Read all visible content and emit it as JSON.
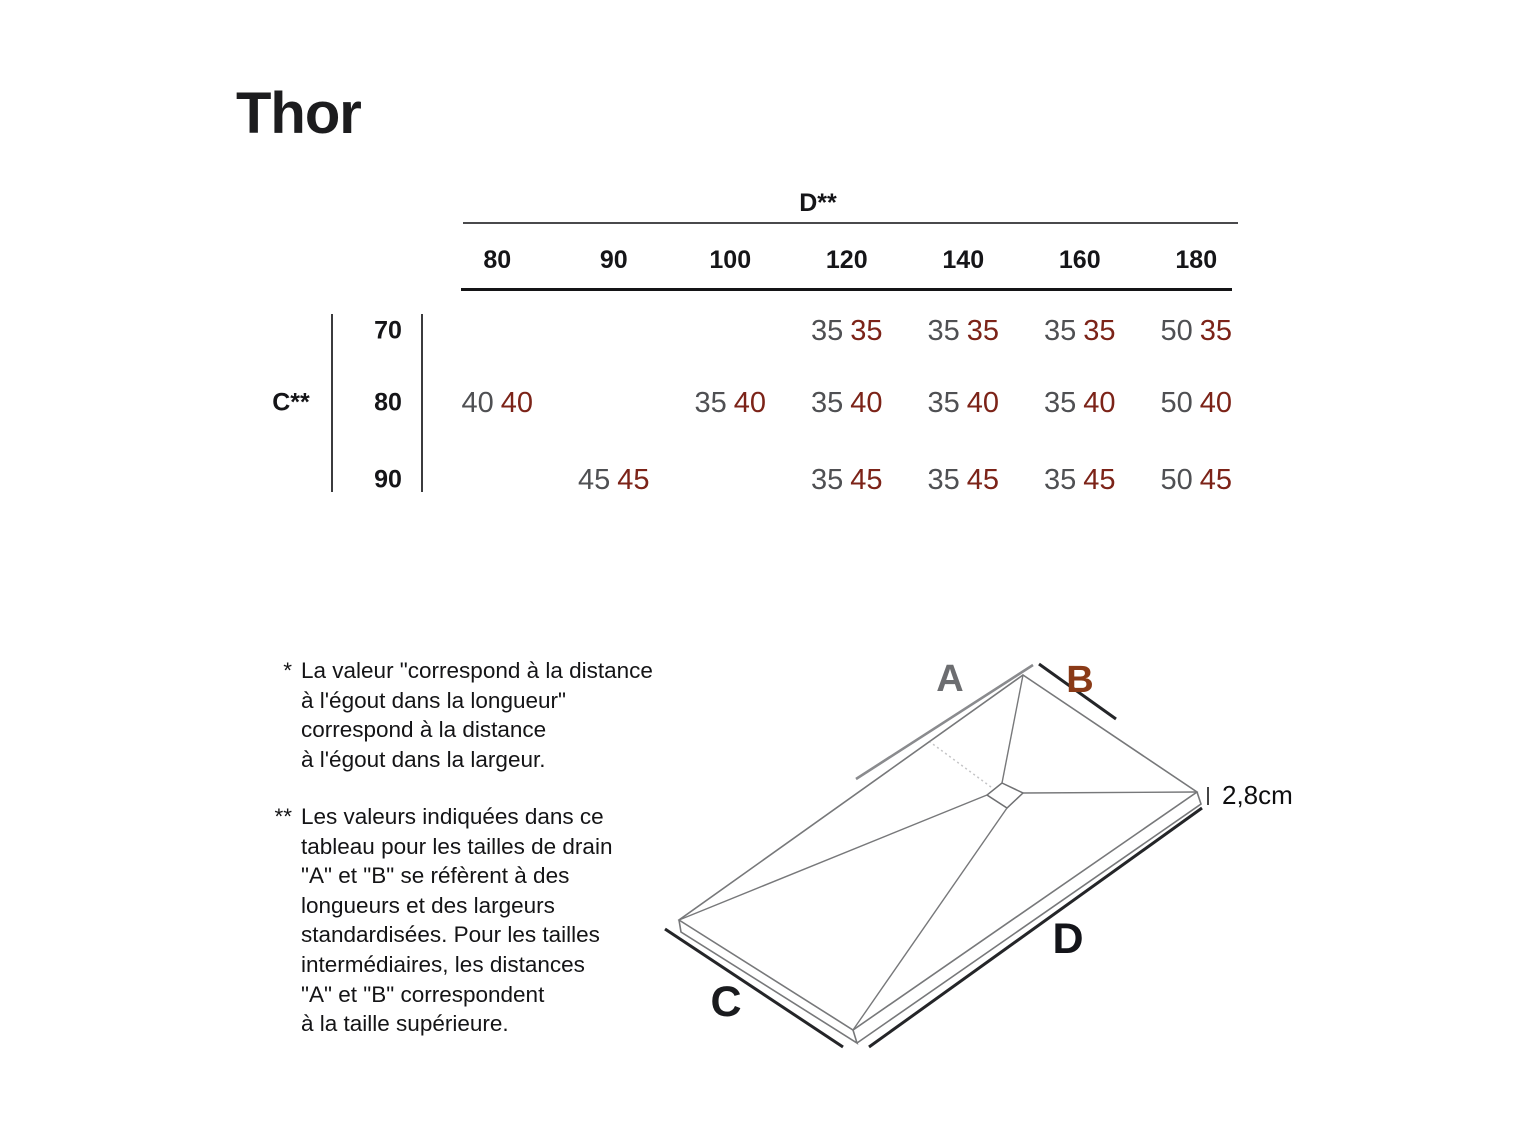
{
  "title": "Thor",
  "table": {
    "col_group_label": "D**",
    "row_group_label": "C**",
    "columns": [
      "80",
      "90",
      "100",
      "120",
      "140",
      "160",
      "180"
    ],
    "rows": [
      {
        "label": "70",
        "cells": [
          null,
          null,
          null,
          [
            "35",
            "35"
          ],
          [
            "35",
            "35"
          ],
          [
            "35",
            "35"
          ],
          [
            "50",
            "35"
          ]
        ]
      },
      {
        "label": "80",
        "cells": [
          [
            "40",
            "40"
          ],
          null,
          [
            "35",
            "40"
          ],
          [
            "35",
            "40"
          ],
          [
            "35",
            "40"
          ],
          [
            "35",
            "40"
          ],
          [
            "50",
            "40"
          ]
        ]
      },
      {
        "label": "90",
        "cells": [
          null,
          [
            "45",
            "45"
          ],
          null,
          [
            "35",
            "45"
          ],
          [
            "35",
            "45"
          ],
          [
            "35",
            "45"
          ],
          [
            "50",
            "45"
          ]
        ]
      }
    ]
  },
  "footnotes": [
    {
      "marker": "*",
      "lines": [
        "La valeur \"correspond à la distance",
        "à l'égout dans la longueur\"",
        "correspond à la distance",
        "à l'égout dans la largeur."
      ]
    },
    {
      "marker": "**",
      "lines": [
        "Les valeurs indiquées dans ce",
        "tableau pour les tailles de drain",
        "\"A\" et \"B\" se réfèrent à des",
        "longueurs et des largeurs",
        "standardisées. Pour les tailles",
        "intermédiaires, les distances",
        "\"A\" et \"B\" correspondent",
        "à la taille supérieure."
      ]
    }
  ],
  "diagram": {
    "label_a": "A",
    "label_b": "B",
    "label_c": "C",
    "label_d": "D",
    "thickness": "2,8cm"
  },
  "colors": {
    "value_gray": "#4f5053",
    "value_red": "#7c2318",
    "label_a_gray": "#6c6d70",
    "label_b_rust": "#8a3a17",
    "ink": "#141416"
  }
}
